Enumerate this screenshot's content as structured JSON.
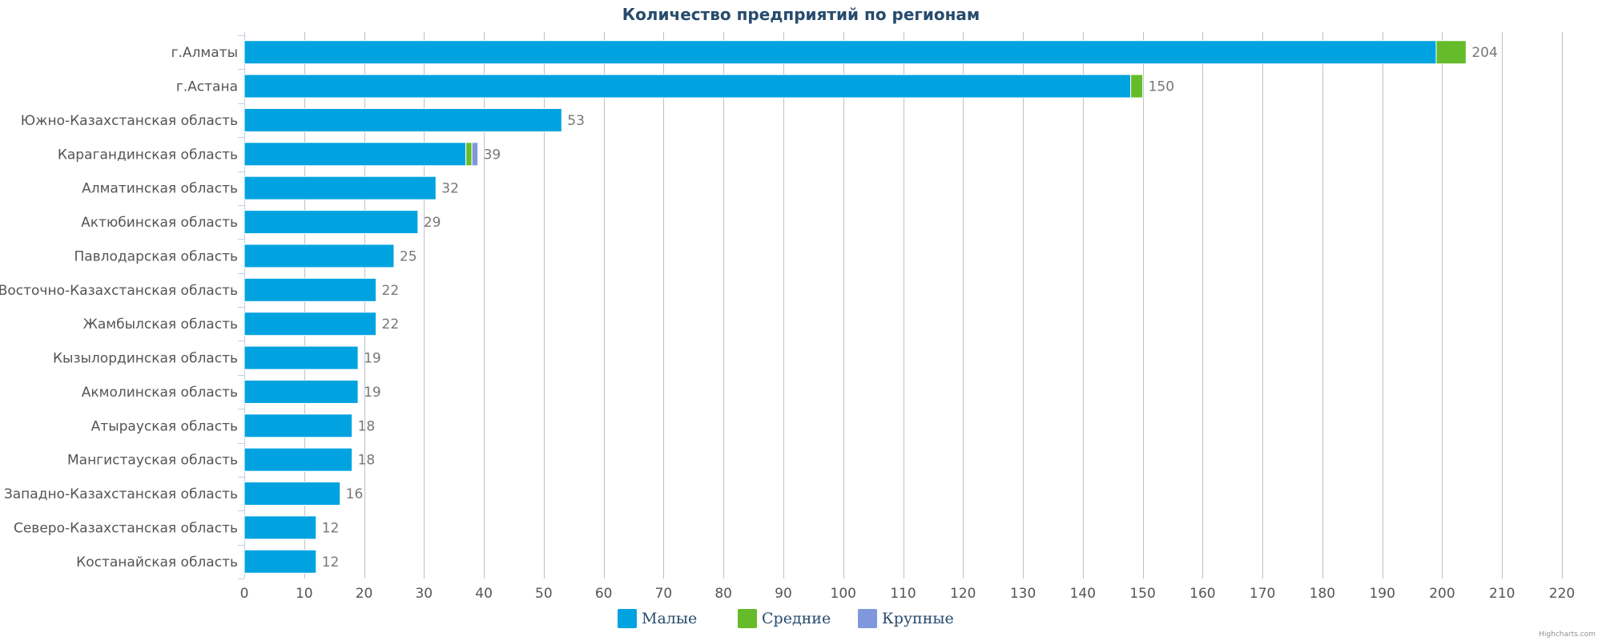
{
  "chart_data": {
    "type": "bar",
    "orientation": "horizontal",
    "stacking": "normal",
    "title": "Количество предприятий по регионам",
    "categories": [
      "г.Алматы",
      "г.Астана",
      "Южно-Казахстанская область",
      "Карагандинская область",
      "Алматинская область",
      "Актюбинская область",
      "Павлодарская область",
      "Восточно-Казахстанская область",
      "Жамбылская область",
      "Кызылординская область",
      "Акмолинская область",
      "Атырауская область",
      "Мангистауская область",
      "Западно-Казахстанская область",
      "Северо-Казахстанская область",
      "Костанайская область"
    ],
    "series": [
      {
        "name": "Малые",
        "color": "#00a3e0",
        "values": [
          199,
          148,
          53,
          37,
          32,
          29,
          25,
          22,
          22,
          19,
          19,
          18,
          18,
          16,
          12,
          12
        ]
      },
      {
        "name": "Средние",
        "color": "#66bb2a",
        "values": [
          5,
          2,
          0,
          1,
          0,
          0,
          0,
          0,
          0,
          0,
          0,
          0,
          0,
          0,
          0,
          0
        ]
      },
      {
        "name": "Крупные",
        "color": "#8097de",
        "values": [
          0,
          0,
          0,
          1,
          0,
          0,
          0,
          0,
          0,
          0,
          0,
          0,
          0,
          0,
          0,
          0
        ]
      }
    ],
    "totals": [
      "204",
      "150",
      "53",
      "39",
      "32",
      "29",
      "25",
      "22",
      "22",
      "19",
      "19",
      "18",
      "18",
      "16",
      "12",
      "12"
    ],
    "xlim": [
      0,
      220
    ],
    "xticks": [
      "0",
      "10",
      "20",
      "30",
      "40",
      "50",
      "60",
      "70",
      "80",
      "90",
      "100",
      "110",
      "120",
      "130",
      "140",
      "150",
      "160",
      "170",
      "180",
      "190",
      "200",
      "210",
      "220"
    ],
    "grid": true,
    "legend_position": "bottom-center"
  },
  "credits": "Highcharts.com"
}
